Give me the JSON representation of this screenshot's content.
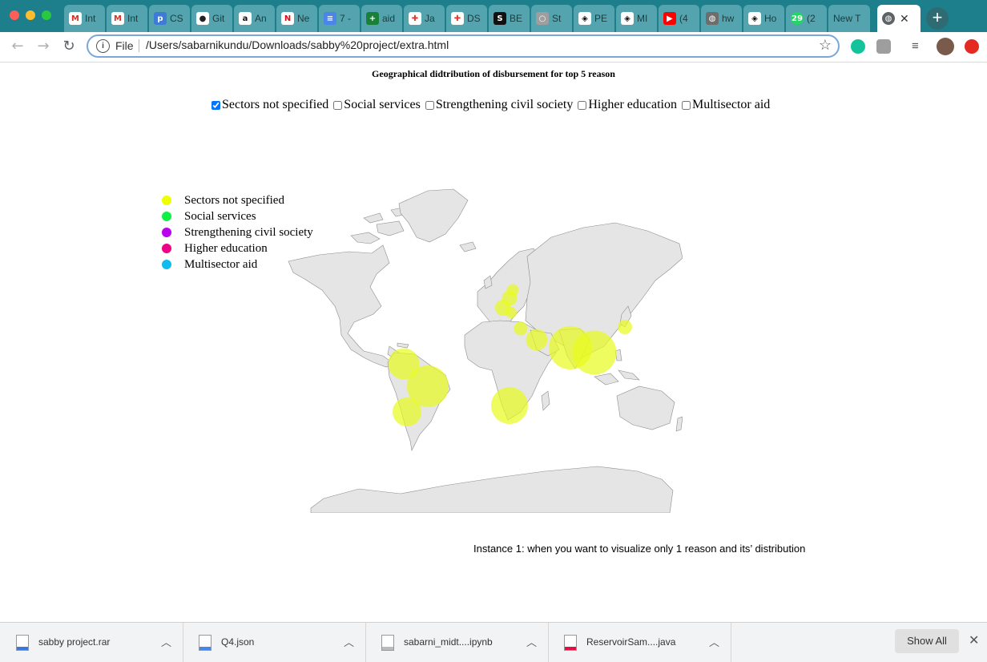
{
  "browser": {
    "tabs": [
      {
        "title": "Int",
        "icon": "gmail-icon",
        "color": "#ffffff",
        "glyph": "M",
        "glyph_color": "#d93025"
      },
      {
        "title": "Int",
        "icon": "gmail-icon",
        "color": "#ffffff",
        "glyph": "M",
        "glyph_color": "#d93025"
      },
      {
        "title": "CS",
        "icon": "p-icon",
        "color": "#3d7bd4",
        "glyph": "p",
        "glyph_color": "#ffffff"
      },
      {
        "title": "Git",
        "icon": "github-icon",
        "color": "#ffffff",
        "glyph": "●",
        "glyph_color": "#222222"
      },
      {
        "title": "An",
        "icon": "amazon-icon",
        "color": "#ffffff",
        "glyph": "a",
        "glyph_color": "#111111"
      },
      {
        "title": "Ne",
        "icon": "netflix-icon",
        "color": "#ffffff",
        "glyph": "N",
        "glyph_color": "#e50914"
      },
      {
        "title": "7 -",
        "icon": "docs-icon",
        "color": "#4a86e8",
        "glyph": "≡",
        "glyph_color": "#ffffff"
      },
      {
        "title": "aid",
        "icon": "sheets-icon",
        "color": "#188038",
        "glyph": "+",
        "glyph_color": "#ffffff"
      },
      {
        "title": "Ja",
        "icon": "tableau-icon",
        "color": "#ffffff",
        "glyph": "✚",
        "glyph_color": "#e03c31"
      },
      {
        "title": "DS",
        "icon": "tableau-icon",
        "color": "#ffffff",
        "glyph": "✚",
        "glyph_color": "#e03c31"
      },
      {
        "title": "BE",
        "icon": "s-icon",
        "color": "#111111",
        "glyph": "S",
        "glyph_color": "#ffffff"
      },
      {
        "title": "St",
        "icon": "circle-icon",
        "color": "#9e9e9e",
        "glyph": "○",
        "glyph_color": "#ffffff"
      },
      {
        "title": "PE",
        "icon": "codepen-icon",
        "color": "#ffffff",
        "glyph": "◈",
        "glyph_color": "#111111"
      },
      {
        "title": "MI",
        "icon": "codepen-icon",
        "color": "#ffffff",
        "glyph": "◈",
        "glyph_color": "#111111"
      },
      {
        "title": "(4",
        "icon": "youtube-icon",
        "color": "#ff0000",
        "glyph": "▶",
        "glyph_color": "#ffffff"
      },
      {
        "title": "hw",
        "icon": "globe-icon",
        "color": "#6d6d6d",
        "glyph": "◍",
        "glyph_color": "#ffffff"
      },
      {
        "title": "Ho",
        "icon": "codepen-icon",
        "color": "#ffffff",
        "glyph": "◈",
        "glyph_color": "#111111"
      },
      {
        "title": "(2",
        "icon": "whatsapp-icon",
        "color": "#25d366",
        "glyph": "29",
        "glyph_color": "#ffffff"
      },
      {
        "title": "New T",
        "icon": "",
        "color": "",
        "glyph": "",
        "glyph_color": ""
      }
    ],
    "active_tab_icon": "globe-icon",
    "address": {
      "scheme_label": "File",
      "url": "/Users/sabarnikundu/Downloads/sabby%20project/extra.html"
    }
  },
  "page": {
    "title": "Geographical didtribution of disbursement for top 5 reason",
    "filters": [
      {
        "label": "Sectors not specified",
        "checked": true
      },
      {
        "label": "Social services",
        "checked": false
      },
      {
        "label": "Strengthening civil society",
        "checked": false
      },
      {
        "label": "Higher education",
        "checked": false
      },
      {
        "label": "Multisector aid",
        "checked": false
      }
    ],
    "legend": [
      {
        "label": "Sectors not specified",
        "color": "#eeff00"
      },
      {
        "label": "Social services",
        "color": "#11ee44"
      },
      {
        "label": "Strengthening civil society",
        "color": "#bb00ee"
      },
      {
        "label": "Higher education",
        "color": "#ee0088"
      },
      {
        "label": "Multisector aid",
        "color": "#11bbee"
      }
    ],
    "map": {
      "bubble_color": "#e8fb1c",
      "bubble_opacity": 0.7,
      "bubbles": [
        {
          "region": "Colombia",
          "size": 0.39
        },
        {
          "region": "Brazil",
          "size": 0.52
        },
        {
          "region": "Bolivia / Chile",
          "size": 0.36
        },
        {
          "region": "South Africa",
          "size": 0.46
        },
        {
          "region": "India",
          "size": 0.54
        },
        {
          "region": "Southeast Asia",
          "size": 0.55
        },
        {
          "region": "Arabian Peninsula",
          "size": 0.27
        },
        {
          "region": "Turkey / Levant",
          "size": 0.17
        },
        {
          "region": "Europe (west)",
          "size": 0.2
        },
        {
          "region": "Europe (central)",
          "size": 0.19
        },
        {
          "region": "Europe (north)",
          "size": 0.15
        },
        {
          "region": "Europe (south-east)",
          "size": 0.14
        },
        {
          "region": "Japan",
          "size": 0.18
        }
      ]
    },
    "caption": "Instance 1: when you want to visualize only 1 reason and its’ distribution"
  },
  "downloads": {
    "items": [
      {
        "name": "sabby project.rar",
        "icon": "archive-icon"
      },
      {
        "name": "Q4.json",
        "icon": "json-file-icon"
      },
      {
        "name": "sabarni_midt....ipynb",
        "icon": "file-icon"
      },
      {
        "name": "ReservoirSam....java",
        "icon": "java-file-icon"
      }
    ],
    "show_all_label": "Show All"
  }
}
